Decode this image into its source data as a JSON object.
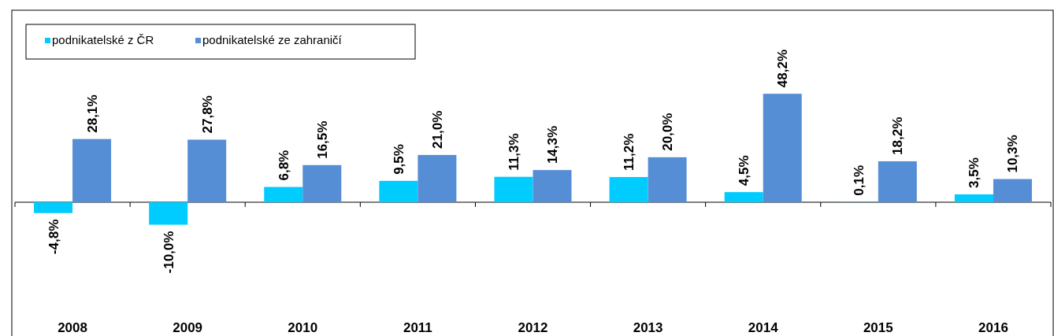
{
  "chart_data": {
    "type": "bar",
    "categories": [
      "2008",
      "2009",
      "2010",
      "2011",
      "2012",
      "2013",
      "2014",
      "2015",
      "2016"
    ],
    "series": [
      {
        "name": "podnikatelské z ČR",
        "color": "#00ccff",
        "values": [
          -4.8,
          -10.0,
          6.8,
          9.5,
          11.3,
          11.2,
          4.5,
          0.1,
          3.5
        ],
        "value_labels": [
          "-4,8%",
          "-10,0%",
          "6,8%",
          "9,5%",
          "11,3%",
          "11,2%",
          "4,5%",
          "0,1%",
          "3,5%"
        ]
      },
      {
        "name": "podnikatelské ze zahraničí",
        "color": "#558ed5",
        "values": [
          28.1,
          27.8,
          16.5,
          21.0,
          14.3,
          20.0,
          48.2,
          18.2,
          10.3
        ],
        "value_labels": [
          "28,1%",
          "27,8%",
          "16,5%",
          "21,0%",
          "14,3%",
          "20,0%",
          "48,2%",
          "18,2%",
          "10,3%"
        ]
      }
    ],
    "legend": "top left"
  }
}
